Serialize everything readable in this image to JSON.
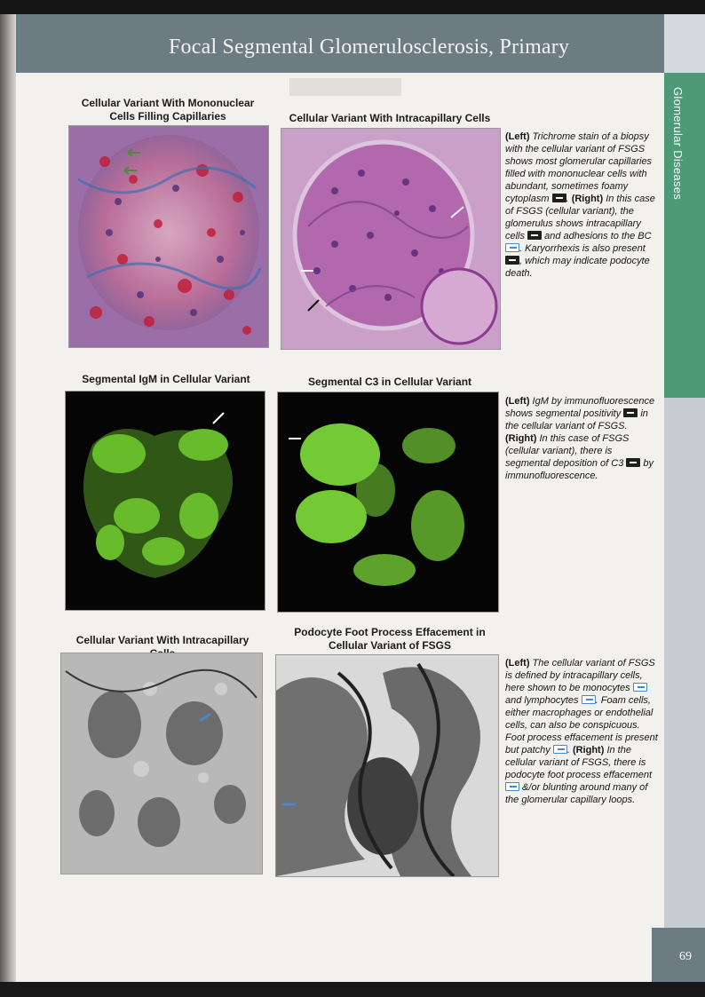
{
  "header": {
    "title": "Focal Segmental Glomerulosclerosis, Primary"
  },
  "sidebar": {
    "section": "Glomerular Diseases"
  },
  "page_number": "69",
  "figures": {
    "row1": {
      "left_title": "Cellular Variant With Mononuclear Cells Filling Capillaries",
      "right_title": "Cellular Variant With Intracapillary Cells",
      "legend": [
        {
          "t": "(Left)",
          "bold": true
        },
        {
          "t": " Trichrome stain of a biopsy with the cellular variant of FSGS shows most glomerular capillaries filled with mononuclear cells with abundant, sometimes foamy cytoplasm "
        },
        {
          "icon": "solid"
        },
        {
          "t": ". "
        },
        {
          "t": "(Right)",
          "bold": true
        },
        {
          "t": " In this case of FSGS (cellular variant), the glomerulus shows intracapillary cells "
        },
        {
          "icon": "solid"
        },
        {
          "t": " and adhesions to the BC "
        },
        {
          "icon": "hollow"
        },
        {
          "t": ". Karyorrhexis is also present "
        },
        {
          "icon": "solid"
        },
        {
          "t": ", which may indicate podocyte death."
        }
      ]
    },
    "row2": {
      "left_title": "Segmental IgM in Cellular Variant",
      "right_title": "Segmental C3 in Cellular Variant",
      "legend": [
        {
          "t": "(Left)",
          "bold": true
        },
        {
          "t": " IgM by immunofluorescence shows segmental positivity "
        },
        {
          "icon": "solid"
        },
        {
          "t": " in the cellular variant of FSGS. "
        },
        {
          "t": "(Right)",
          "bold": true
        },
        {
          "t": " In this case of FSGS (cellular variant), there is segmental deposition of C3 "
        },
        {
          "icon": "solid"
        },
        {
          "t": " by immunofluorescence."
        }
      ]
    },
    "row3": {
      "left_title": "Cellular Variant With Intracapillary Cells",
      "right_title": "Podocyte Foot Process Effacement in Cellular Variant of FSGS",
      "legend": [
        {
          "t": "(Left)",
          "bold": true
        },
        {
          "t": " The cellular variant of FSGS is defined by intracapillary cells, here shown to be monocytes "
        },
        {
          "icon": "hollow"
        },
        {
          "t": " and lymphocytes "
        },
        {
          "icon": "hollow"
        },
        {
          "t": ". Foam cells, either macrophages or endothelial cells, can also be conspicuous. Foot process effacement is present but patchy "
        },
        {
          "icon": "hollow"
        },
        {
          "t": ". "
        },
        {
          "t": "(Right)",
          "bold": true
        },
        {
          "t": " In the cellular variant of FSGS, there is podocyte foot process effacement "
        },
        {
          "icon": "hollow"
        },
        {
          "t": " &/or blunting around many of the glomerular capillary loops."
        }
      ]
    }
  },
  "colors": {
    "header": "#6d7b82",
    "green_tab": "#4f9a76",
    "fluorescence": "#7fe03a",
    "trichrome": "#b0608a",
    "pas": "#a3479b"
  }
}
